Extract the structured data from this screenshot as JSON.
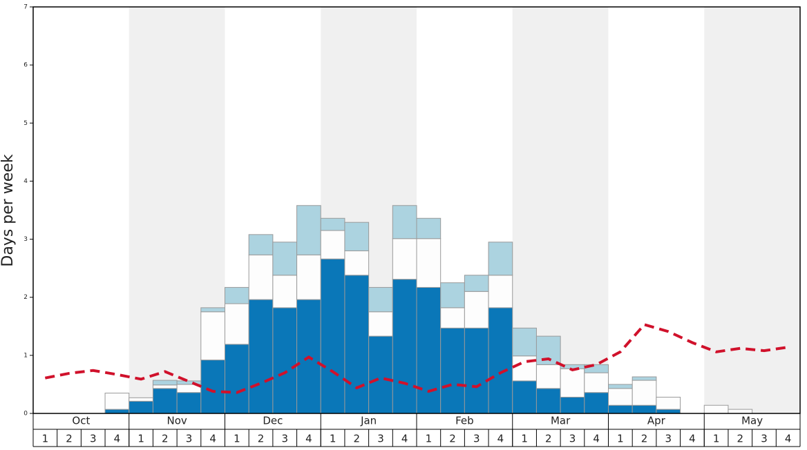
{
  "chart_data": {
    "type": "bar",
    "stacked": true,
    "y_label": "Days per week",
    "months": [
      "Oct",
      "Nov",
      "Dec",
      "Jan",
      "Feb",
      "Mar",
      "Apr",
      "May"
    ],
    "categories": [
      "1",
      "2",
      "3",
      "4",
      "1",
      "2",
      "3",
      "4",
      "1",
      "2",
      "3",
      "4",
      "1",
      "2",
      "3",
      "4",
      "1",
      "2",
      "3",
      "4",
      "1",
      "2",
      "3",
      "4",
      "1",
      "2",
      "3",
      "4",
      "1",
      "2",
      "3",
      "4"
    ],
    "ylim": [
      0,
      7
    ],
    "yticks": [
      0,
      1,
      2,
      3,
      4,
      5,
      6,
      7
    ],
    "shade_color": "#f0f0f0",
    "series": [
      {
        "color": "#0a77b8",
        "values": [
          0,
          0,
          0,
          0.07,
          0.21,
          0.43,
          0.36,
          0.92,
          1.19,
          1.96,
          1.82,
          1.96,
          2.66,
          2.38,
          1.33,
          2.31,
          2.17,
          1.47,
          1.47,
          1.82,
          0.56,
          0.43,
          0.28,
          0.36,
          0.14,
          0.14,
          0.07,
          0,
          0,
          0,
          0,
          0
        ]
      },
      {
        "color": "#fdfdfd",
        "values": [
          0,
          0,
          0,
          0.28,
          0.06,
          0.06,
          0.14,
          0.83,
          0.7,
          0.77,
          0.56,
          0.77,
          0.49,
          0.42,
          0.42,
          0.7,
          0.84,
          0.35,
          0.63,
          0.56,
          0.43,
          0.41,
          0.49,
          0.34,
          0.29,
          0.43,
          0.21,
          0,
          0.14,
          0.07,
          0,
          0
        ]
      },
      {
        "color": "#acd3e0",
        "values": [
          0,
          0,
          0,
          0,
          0,
          0.08,
          0.06,
          0.07,
          0.28,
          0.35,
          0.57,
          0.85,
          0.21,
          0.49,
          0.42,
          0.57,
          0.35,
          0.43,
          0.28,
          0.57,
          0.48,
          0.49,
          0.07,
          0.14,
          0.07,
          0.06,
          0,
          0,
          0,
          0,
          0,
          0
        ]
      }
    ],
    "line": {
      "type": "line",
      "color": "#d0112b",
      "dashed": true,
      "values": [
        0.61,
        0.69,
        0.74,
        0.67,
        0.59,
        0.72,
        0.55,
        0.38,
        0.36,
        0.52,
        0.7,
        0.97,
        0.72,
        0.44,
        0.61,
        0.52,
        0.38,
        0.5,
        0.46,
        0.7,
        0.89,
        0.94,
        0.75,
        0.84,
        1.06,
        1.53,
        1.41,
        1.22,
        1.06,
        1.12,
        1.08,
        1.14
      ]
    }
  }
}
